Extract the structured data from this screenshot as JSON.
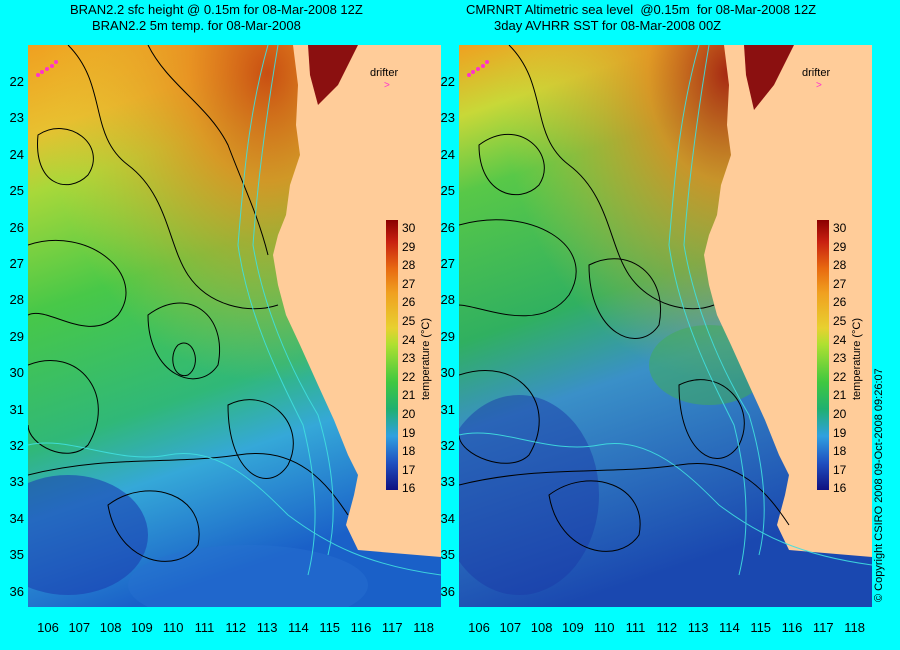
{
  "left_panel": {
    "title_line1": "BRAN2.2 sfc height @ 0.15m for 08-Mar-2008 12Z",
    "title_line2": "BRAN2.2 5m temp. for 08-Mar-2008",
    "drifter_label": "drifter"
  },
  "right_panel": {
    "title_line1": "CMRNRT Altimetric sea level  @0.15m  for 08-Mar-2008 12Z",
    "title_line2": "3day AVHRR SST for 08-Mar-2008 00Z",
    "drifter_label": "drifter"
  },
  "lat_ticks": [
    "22",
    "23",
    "24",
    "25",
    "26",
    "27",
    "28",
    "29",
    "30",
    "31",
    "32",
    "33",
    "34",
    "35",
    "36"
  ],
  "lon_ticks": [
    "106",
    "107",
    "108",
    "109",
    "110",
    "111",
    "112",
    "113",
    "114",
    "115",
    "116",
    "117",
    "118"
  ],
  "colorbar": {
    "title": "temperature (°C)",
    "ticks": [
      "30",
      "29",
      "28",
      "27",
      "26",
      "25",
      "24",
      "23",
      "22",
      "21",
      "20",
      "19",
      "18",
      "17",
      "16"
    ]
  },
  "copyright": "© Copyright CSIRO 2008   09-Oct-2008 09:26:07",
  "colors": {
    "background": "#00ffff",
    "land": "#ffcc99",
    "warm": "#e08a1e",
    "cool": "#2a8ae0",
    "drifter": "#ff33cc"
  }
}
